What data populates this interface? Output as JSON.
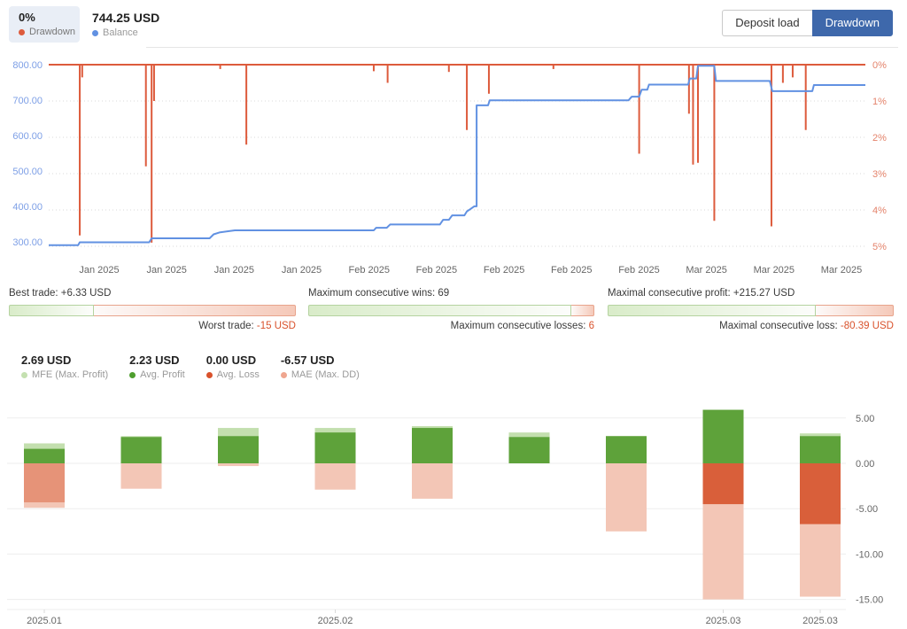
{
  "header": {
    "drawdown_badge": {
      "value": "0%",
      "label": "Drawdown"
    },
    "balance_legend": {
      "value": "744.25 USD",
      "label": "Balance"
    },
    "buttons": [
      {
        "label": "Deposit load",
        "active": false
      },
      {
        "label": "Drawdown",
        "active": true
      }
    ]
  },
  "stats": [
    {
      "label_top": "Best trade: +6.33 USD",
      "label_bottom": "Worst trade:",
      "value_bottom": "-15 USD",
      "green_pct": 29.7
    },
    {
      "label_top": "Maximum consecutive wins: 69",
      "label_bottom": "Maximum consecutive losses:",
      "value_bottom": "6",
      "green_pct": 92
    },
    {
      "label_top": "Maximal consecutive profit: +215.27 USD",
      "label_bottom": "Maximal consecutive loss:",
      "value_bottom": "-80.39 USD",
      "green_pct": 72.8
    }
  ],
  "bottom_legend": [
    {
      "value": "2.69 USD",
      "label": "MFE (Max. Profit)",
      "color": "#c4e0b0"
    },
    {
      "value": "2.23 USD",
      "label": "Avg. Profit",
      "color": "#4e9e2e"
    },
    {
      "value": "0.00 USD",
      "label": "Avg. Loss",
      "color": "#d9522c"
    },
    {
      "value": "-6.57 USD",
      "label": "MAE (Max. DD)",
      "color": "#efa68f"
    }
  ],
  "chart_data": [
    {
      "id": "balance_drawdown",
      "type": "line",
      "x_axis_labels": [
        "Jan 2025",
        "Jan 2025",
        "Jan 2025",
        "Jan 2025",
        "Feb 2025",
        "Feb 2025",
        "Feb 2025",
        "Feb 2025",
        "Feb 2025",
        "Mar 2025",
        "Mar 2025",
        "Mar 2025"
      ],
      "left_axis": {
        "labels": [
          "800.00",
          "700.00",
          "600.00",
          "500.00",
          "400.00",
          "300.00"
        ],
        "min": 300,
        "max": 800
      },
      "right_axis": {
        "labels": [
          "0%",
          "1%",
          "2%",
          "3%",
          "4%",
          "5%"
        ],
        "min": 0,
        "max": 5
      },
      "grid": true,
      "series": [
        {
          "name": "Balance",
          "unit": "USD",
          "points": [
            [
              0,
              303
            ],
            [
              0.036,
              303
            ],
            [
              0.038,
              311
            ],
            [
              0.123,
              311
            ],
            [
              0.126,
              322
            ],
            [
              0.197,
              322
            ],
            [
              0.202,
              333
            ],
            [
              0.209,
              338
            ],
            [
              0.228,
              344
            ],
            [
              0.398,
              344
            ],
            [
              0.401,
              351
            ],
            [
              0.414,
              351
            ],
            [
              0.418,
              360
            ],
            [
              0.479,
              360
            ],
            [
              0.483,
              373
            ],
            [
              0.49,
              373
            ],
            [
              0.494,
              385
            ],
            [
              0.509,
              385
            ],
            [
              0.512,
              396
            ],
            [
              0.516,
              402
            ],
            [
              0.521,
              410
            ],
            [
              0.524,
              410
            ],
            [
              0.524,
              688
            ],
            [
              0.538,
              688
            ],
            [
              0.54,
              702
            ],
            [
              0.71,
              702
            ],
            [
              0.714,
              712
            ],
            [
              0.723,
              712
            ],
            [
              0.726,
              731
            ],
            [
              0.733,
              731
            ],
            [
              0.735,
              745
            ],
            [
              0.783,
              745
            ],
            [
              0.785,
              762
            ],
            [
              0.793,
              762
            ],
            [
              0.795,
              797
            ],
            [
              0.815,
              797
            ],
            [
              0.817,
              755
            ],
            [
              0.883,
              755
            ],
            [
              0.886,
              727
            ],
            [
              0.935,
              727
            ],
            [
              0.937,
              744
            ],
            [
              1,
              744
            ]
          ]
        },
        {
          "name": "Drawdown",
          "unit": "%",
          "baseline": 0,
          "spikes": [
            [
              0.038,
              4.7
            ],
            [
              0.041,
              0.35
            ],
            [
              0.119,
              2.8
            ],
            [
              0.126,
              4.9
            ],
            [
              0.129,
              1.0
            ],
            [
              0.21,
              0.12
            ],
            [
              0.242,
              2.2
            ],
            [
              0.398,
              0.18
            ],
            [
              0.415,
              0.5
            ],
            [
              0.49,
              0.2
            ],
            [
              0.512,
              1.8
            ],
            [
              0.539,
              0.8
            ],
            [
              0.618,
              0.12
            ],
            [
              0.723,
              2.45
            ],
            [
              0.784,
              1.35
            ],
            [
              0.789,
              2.75
            ],
            [
              0.795,
              2.7
            ],
            [
              0.815,
              4.3
            ],
            [
              0.885,
              4.45
            ],
            [
              0.899,
              0.5
            ],
            [
              0.911,
              0.35
            ],
            [
              0.927,
              1.8
            ]
          ]
        }
      ]
    },
    {
      "id": "mfe_mae_monthly",
      "type": "bar",
      "categories": [
        "2025.01",
        "",
        "",
        "2025.02",
        "",
        "",
        "",
        "2025.03",
        "2025.03"
      ],
      "ylim": [
        -15,
        5
      ],
      "y_ticks": [
        "5.00",
        "0.00",
        "-5.00",
        "-10.00",
        "-15.00"
      ],
      "y_tick_values": [
        5,
        0,
        -5,
        -10,
        -15
      ],
      "grid": true,
      "series": [
        {
          "name": "MFE (Max. Profit)",
          "values": [
            2.2,
            3.0,
            3.9,
            3.9,
            4.1,
            3.4,
            3.0,
            5.9,
            3.3
          ]
        },
        {
          "name": "Avg. Profit",
          "values": [
            1.6,
            2.9,
            3.0,
            3.4,
            3.9,
            2.9,
            3.0,
            5.9,
            3.0
          ]
        },
        {
          "name": "Avg. Loss",
          "values": [
            -4.3,
            0,
            0,
            0,
            0,
            0,
            0,
            -4.5,
            -6.7
          ],
          "opacities": [
            0.5,
            1,
            1,
            1,
            1,
            1,
            1,
            1,
            1
          ]
        },
        {
          "name": "MAE (Max. DD)",
          "values": [
            -4.9,
            -2.8,
            -0.3,
            -2.9,
            -3.9,
            0,
            -7.5,
            -15.0,
            -14.7
          ]
        }
      ]
    }
  ],
  "colors": {
    "accent_blue": "#3e68ab",
    "badge_bg": "#e9eef6",
    "balance_line": "#6191e2",
    "drawdown_line": "#dd5b3c",
    "left_axis_label": "#7d9fe6",
    "right_axis_label": "#e4836b",
    "tick_gray": "#666666",
    "profit_green": "#5ea23a",
    "mfe_green": "#c3dfae",
    "loss_red": "#d95f3a",
    "mae_pink": "#f3c6b6",
    "grid_dotted": "#d9d9d9",
    "grid_light": "#ededed"
  }
}
